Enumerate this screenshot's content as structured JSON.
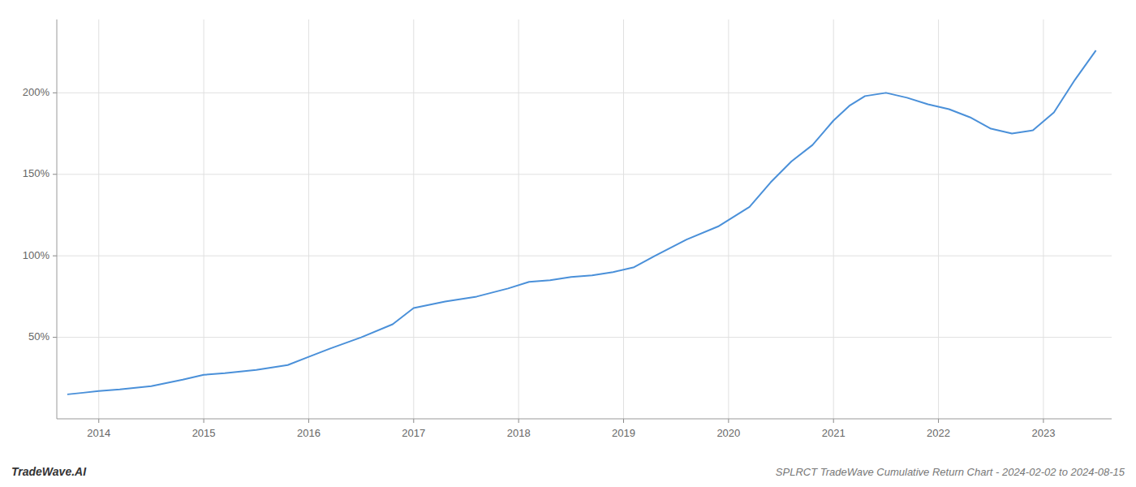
{
  "chart_data": {
    "type": "line",
    "title": "SPLRCT TradeWave Cumulative Return Chart - 2024-02-02 to 2024-08-15",
    "annotations": [
      "TradeWave.AI"
    ],
    "color": "#4a90d9",
    "grid": true,
    "x": [
      2013.7,
      2013.85,
      2014.0,
      2014.2,
      2014.5,
      2014.8,
      2015.0,
      2015.2,
      2015.5,
      2015.8,
      2016.0,
      2016.2,
      2016.5,
      2016.8,
      2017.0,
      2017.3,
      2017.6,
      2017.9,
      2018.1,
      2018.3,
      2018.5,
      2018.7,
      2018.9,
      2019.1,
      2019.3,
      2019.6,
      2019.9,
      2020.2,
      2020.4,
      2020.6,
      2020.8,
      2021.0,
      2021.15,
      2021.3,
      2021.5,
      2021.7,
      2021.9,
      2022.1,
      2022.3,
      2022.5,
      2022.7,
      2022.9,
      2023.1,
      2023.3,
      2023.5
    ],
    "values": [
      15,
      16,
      17,
      18,
      20,
      24,
      27,
      28,
      30,
      33,
      38,
      43,
      50,
      58,
      68,
      72,
      75,
      80,
      84,
      85,
      87,
      88,
      90,
      93,
      100,
      110,
      118,
      130,
      145,
      158,
      168,
      183,
      192,
      198,
      200,
      197,
      193,
      190,
      185,
      178,
      175,
      177,
      188,
      208,
      226
    ],
    "xlim": [
      2013.6,
      2023.65
    ],
    "xticks": [
      2014,
      2015,
      2016,
      2017,
      2018,
      2019,
      2020,
      2021,
      2022,
      2023
    ],
    "ylim": [
      0,
      245
    ],
    "yticks": [
      {
        "value": 50,
        "label": "50%"
      },
      {
        "value": 100,
        "label": "100%"
      },
      {
        "value": 150,
        "label": "150%"
      },
      {
        "value": 200,
        "label": "200%"
      }
    ]
  }
}
